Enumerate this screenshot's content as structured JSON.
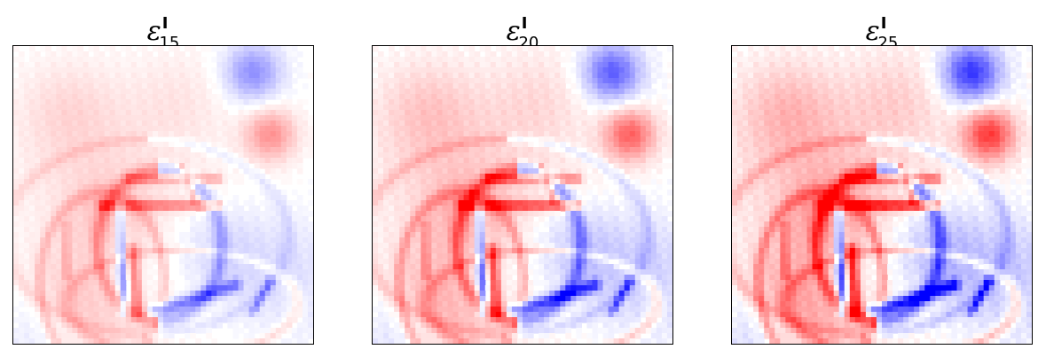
{
  "chart_data": [
    {
      "type": "heatmap",
      "title": {
        "symbol": "ε",
        "superscript": "I",
        "subscript": "15"
      },
      "colormap": "bwr",
      "colors": {
        "negative": "#0000ff",
        "zero": "#ffffff",
        "positive": "#ff0000"
      },
      "grid": false,
      "ticks": false,
      "intensity": 0.55
    },
    {
      "type": "heatmap",
      "title": {
        "symbol": "ε",
        "superscript": "I",
        "subscript": "20"
      },
      "colormap": "bwr",
      "colors": {
        "negative": "#0000ff",
        "zero": "#ffffff",
        "positive": "#ff0000"
      },
      "grid": false,
      "ticks": false,
      "intensity": 0.8
    },
    {
      "type": "heatmap",
      "title": {
        "symbol": "ε",
        "superscript": "I",
        "subscript": "25"
      },
      "colormap": "bwr",
      "colors": {
        "negative": "#0000ff",
        "zero": "#ffffff",
        "positive": "#ff0000"
      },
      "grid": false,
      "ticks": false,
      "intensity": 1.0
    }
  ]
}
